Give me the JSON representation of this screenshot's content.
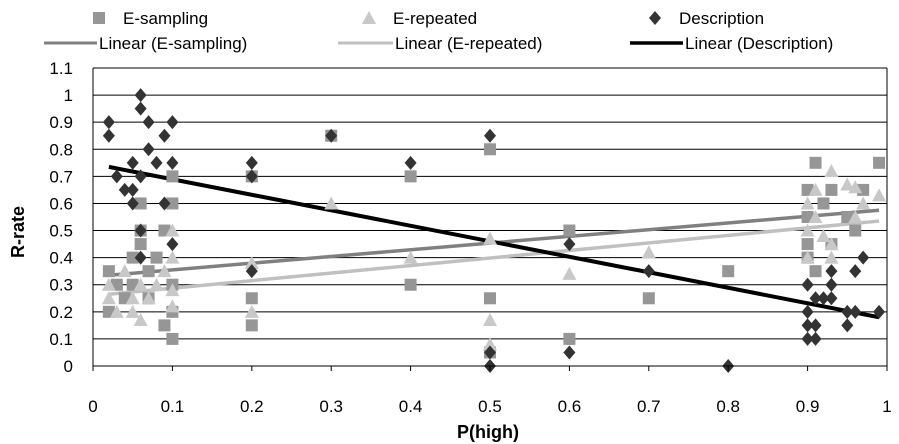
{
  "chart_data": {
    "type": "scatter",
    "title": "",
    "xlabel": "P(high)",
    "ylabel": "R-rate",
    "xlim": [
      0,
      1
    ],
    "ylim": [
      0,
      1.1
    ],
    "x_ticks": [
      "0",
      "0.1",
      "0.2",
      "0.3",
      "0.4",
      "0.5",
      "0.6",
      "0.7",
      "0.8",
      "0.9",
      "1"
    ],
    "y_ticks": [
      "0",
      "0.1",
      "0.2",
      "0.3",
      "0.4",
      "0.5",
      "0.6",
      "0.7",
      "0.8",
      "0.9",
      "1",
      "1.1"
    ],
    "grid": "horizontal",
    "legend_position": "top",
    "series": [
      {
        "name": "E-sampling",
        "marker": "square",
        "color": "#969696",
        "points": [
          [
            0.02,
            0.35
          ],
          [
            0.02,
            0.2
          ],
          [
            0.03,
            0.3
          ],
          [
            0.04,
            0.25
          ],
          [
            0.05,
            0.4
          ],
          [
            0.05,
            0.3
          ],
          [
            0.06,
            0.45
          ],
          [
            0.06,
            0.6
          ],
          [
            0.06,
            0.5
          ],
          [
            0.07,
            0.35
          ],
          [
            0.07,
            0.25
          ],
          [
            0.08,
            0.4
          ],
          [
            0.09,
            0.5
          ],
          [
            0.09,
            0.15
          ],
          [
            0.1,
            0.1
          ],
          [
            0.1,
            0.6
          ],
          [
            0.1,
            0.7
          ],
          [
            0.1,
            0.2
          ],
          [
            0.1,
            0.3
          ],
          [
            0.2,
            0.7
          ],
          [
            0.2,
            0.25
          ],
          [
            0.2,
            0.15
          ],
          [
            0.3,
            0.85
          ],
          [
            0.4,
            0.7
          ],
          [
            0.4,
            0.3
          ],
          [
            0.5,
            0.8
          ],
          [
            0.5,
            0.25
          ],
          [
            0.5,
            0.05
          ],
          [
            0.6,
            0.5
          ],
          [
            0.6,
            0.1
          ],
          [
            0.7,
            0.25
          ],
          [
            0.8,
            0.35
          ],
          [
            0.9,
            0.65
          ],
          [
            0.9,
            0.55
          ],
          [
            0.9,
            0.45
          ],
          [
            0.9,
            0.4
          ],
          [
            0.91,
            0.75
          ],
          [
            0.91,
            0.35
          ],
          [
            0.92,
            0.6
          ],
          [
            0.93,
            0.65
          ],
          [
            0.93,
            0.45
          ],
          [
            0.95,
            0.55
          ],
          [
            0.96,
            0.5
          ],
          [
            0.97,
            0.65
          ],
          [
            0.99,
            0.75
          ]
        ]
      },
      {
        "name": "E-repeated",
        "marker": "triangle",
        "color": "#c8c8c8",
        "points": [
          [
            0.02,
            0.3
          ],
          [
            0.02,
            0.25
          ],
          [
            0.03,
            0.2
          ],
          [
            0.04,
            0.35
          ],
          [
            0.05,
            0.25
          ],
          [
            0.05,
            0.2
          ],
          [
            0.06,
            0.3
          ],
          [
            0.06,
            0.17
          ],
          [
            0.07,
            0.25
          ],
          [
            0.08,
            0.3
          ],
          [
            0.09,
            0.35
          ],
          [
            0.1,
            0.5
          ],
          [
            0.1,
            0.4
          ],
          [
            0.1,
            0.28
          ],
          [
            0.1,
            0.22
          ],
          [
            0.2,
            0.38
          ],
          [
            0.2,
            0.2
          ],
          [
            0.3,
            0.6
          ],
          [
            0.4,
            0.4
          ],
          [
            0.5,
            0.47
          ],
          [
            0.5,
            0.17
          ],
          [
            0.5,
            0.08
          ],
          [
            0.6,
            0.34
          ],
          [
            0.7,
            0.42
          ],
          [
            0.9,
            0.6
          ],
          [
            0.9,
            0.5
          ],
          [
            0.9,
            0.4
          ],
          [
            0.91,
            0.65
          ],
          [
            0.91,
            0.55
          ],
          [
            0.92,
            0.48
          ],
          [
            0.93,
            0.72
          ],
          [
            0.93,
            0.45
          ],
          [
            0.93,
            0.4
          ],
          [
            0.95,
            0.67
          ],
          [
            0.96,
            0.66
          ],
          [
            0.96,
            0.55
          ],
          [
            0.97,
            0.6
          ],
          [
            0.99,
            0.63
          ]
        ]
      },
      {
        "name": "Description",
        "marker": "diamond",
        "color": "#333333",
        "points": [
          [
            0.02,
            0.9
          ],
          [
            0.02,
            0.85
          ],
          [
            0.03,
            0.7
          ],
          [
            0.04,
            0.65
          ],
          [
            0.05,
            0.75
          ],
          [
            0.05,
            0.65
          ],
          [
            0.05,
            0.6
          ],
          [
            0.06,
            1.0
          ],
          [
            0.06,
            0.95
          ],
          [
            0.06,
            0.7
          ],
          [
            0.06,
            0.5
          ],
          [
            0.06,
            0.4
          ],
          [
            0.07,
            0.9
          ],
          [
            0.07,
            0.8
          ],
          [
            0.08,
            0.75
          ],
          [
            0.09,
            0.85
          ],
          [
            0.09,
            0.6
          ],
          [
            0.1,
            0.9
          ],
          [
            0.1,
            0.75
          ],
          [
            0.1,
            0.45
          ],
          [
            0.2,
            0.75
          ],
          [
            0.2,
            0.7
          ],
          [
            0.2,
            0.35
          ],
          [
            0.3,
            0.85
          ],
          [
            0.4,
            0.75
          ],
          [
            0.5,
            0.85
          ],
          [
            0.5,
            0.05
          ],
          [
            0.5,
            0.0
          ],
          [
            0.6,
            0.45
          ],
          [
            0.6,
            0.05
          ],
          [
            0.7,
            0.35
          ],
          [
            0.8,
            0.0
          ],
          [
            0.9,
            0.3
          ],
          [
            0.9,
            0.2
          ],
          [
            0.9,
            0.15
          ],
          [
            0.9,
            0.1
          ],
          [
            0.91,
            0.25
          ],
          [
            0.91,
            0.15
          ],
          [
            0.91,
            0.1
          ],
          [
            0.92,
            0.25
          ],
          [
            0.93,
            0.35
          ],
          [
            0.93,
            0.3
          ],
          [
            0.93,
            0.25
          ],
          [
            0.95,
            0.2
          ],
          [
            0.95,
            0.15
          ],
          [
            0.96,
            0.35
          ],
          [
            0.96,
            0.2
          ],
          [
            0.97,
            0.4
          ],
          [
            0.99,
            0.2
          ]
        ]
      }
    ],
    "trendlines": [
      {
        "name": "Linear (E-sampling)",
        "color": "#808080",
        "x": [
          0.02,
          0.99
        ],
        "y": [
          0.335,
          0.575
        ]
      },
      {
        "name": "Linear (E-repeated)",
        "color": "#c0c0c0",
        "x": [
          0.02,
          0.99
        ],
        "y": [
          0.265,
          0.535
        ]
      },
      {
        "name": "Linear (Description)",
        "color": "#000000",
        "x": [
          0.02,
          0.99
        ],
        "y": [
          0.735,
          0.18
        ]
      }
    ]
  }
}
